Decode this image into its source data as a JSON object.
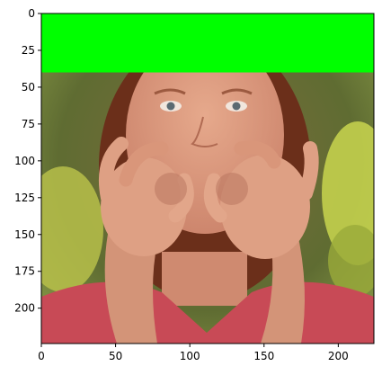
{
  "figure": {
    "image_extent": {
      "x": [
        0,
        224
      ],
      "y": [
        224,
        0
      ]
    },
    "x_ticks": [
      0,
      50,
      100,
      150,
      200
    ],
    "y_ticks": [
      0,
      25,
      50,
      75,
      100,
      125,
      150,
      175,
      200
    ],
    "overlay": {
      "color": "#00ff00",
      "y_range": [
        0,
        40
      ]
    },
    "colors": {
      "background_foliage": "#5c6b2e",
      "foliage_highlight": "#c8d44a",
      "hair": "#6b2f1a",
      "skin": "#d9967a",
      "shirt": "#c84a56",
      "axis": "#000000"
    },
    "subject": "person signing with both hands forming circles in front of mouth"
  }
}
